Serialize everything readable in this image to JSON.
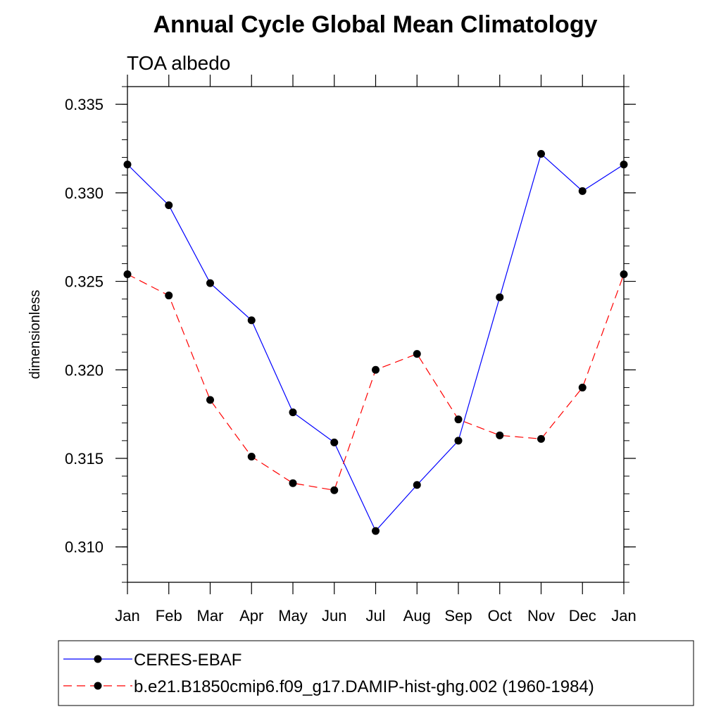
{
  "chart_data": {
    "type": "line",
    "title": "Annual Cycle Global Mean Climatology",
    "subtitle": "TOA albedo",
    "xlabel": "",
    "ylabel": "dimensionless",
    "categories": [
      "Jan",
      "Feb",
      "Mar",
      "Apr",
      "May",
      "Jun",
      "Jul",
      "Aug",
      "Sep",
      "Oct",
      "Nov",
      "Dec",
      "Jan"
    ],
    "ylim": [
      0.308,
      0.336
    ],
    "yticks": [
      {
        "value": 0.31,
        "label": "0.310"
      },
      {
        "value": 0.315,
        "label": "0.315"
      },
      {
        "value": 0.32,
        "label": "0.320"
      },
      {
        "value": 0.325,
        "label": "0.325"
      },
      {
        "value": 0.33,
        "label": "0.330"
      },
      {
        "value": 0.335,
        "label": "0.335"
      }
    ],
    "yminor_step": 0.001,
    "legend_position": "bottom",
    "series": [
      {
        "name": "CERES-EBAF",
        "color": "#0000ff",
        "dash": "solid",
        "marker": "filled-circle",
        "values": [
          0.3316,
          0.3293,
          0.3249,
          0.3228,
          0.3176,
          0.3159,
          0.3109,
          0.3135,
          0.316,
          0.3241,
          0.3322,
          0.3301,
          0.3316
        ]
      },
      {
        "name": "b.e21.B1850cmip6.f09_g17.DAMIP-hist-ghg.002 (1960-1984)",
        "color": "#ff0000",
        "dash": "dashed",
        "marker": "filled-circle",
        "values": [
          0.3254,
          0.3242,
          0.3183,
          0.3151,
          0.3136,
          0.3132,
          0.32,
          0.3209,
          0.3172,
          0.3163,
          0.3161,
          0.319,
          0.3254
        ]
      }
    ]
  }
}
